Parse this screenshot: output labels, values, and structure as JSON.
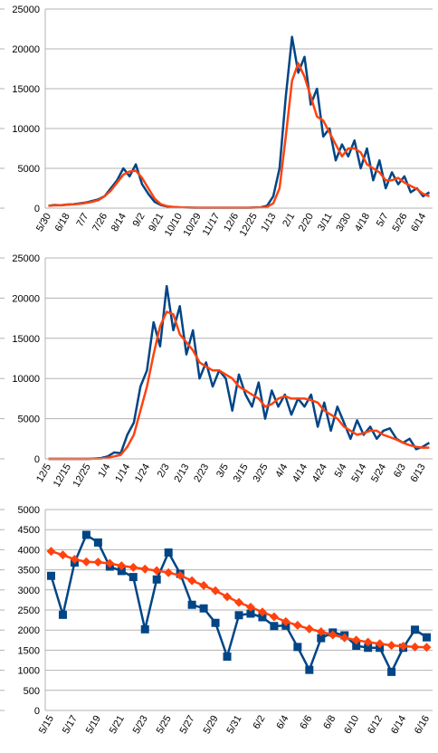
{
  "chart_data": [
    {
      "type": "line",
      "categories": [
        "5/30",
        null,
        null,
        "6/18",
        null,
        null,
        "7/7",
        null,
        null,
        "7/26",
        null,
        null,
        "8/14",
        null,
        null,
        "9/2",
        null,
        null,
        "9/21",
        null,
        null,
        "10/10",
        null,
        null,
        "10/29",
        null,
        null,
        "11/17",
        null,
        null,
        "12/6",
        null,
        null,
        "12/25",
        null,
        null,
        "1/13",
        null,
        null,
        "2/1",
        null,
        null,
        "2/20",
        null,
        null,
        "3/11",
        null,
        null,
        "3/30",
        null,
        null,
        "4/18",
        null,
        null,
        "5/7",
        null,
        null,
        "5/26",
        null,
        null,
        "6/14",
        null
      ],
      "series": [
        {
          "color": "#004586",
          "values": [
            300,
            400,
            350,
            450,
            500,
            600,
            700,
            900,
            1100,
            1500,
            2500,
            3500,
            5000,
            4000,
            5500,
            3000,
            1800,
            800,
            400,
            200,
            150,
            100,
            80,
            60,
            50,
            50,
            50,
            50,
            50,
            50,
            50,
            50,
            50,
            80,
            100,
            300,
            1500,
            5000,
            14000,
            21500,
            17000,
            19000,
            13000,
            15000,
            9000,
            10000,
            6000,
            8000,
            6500,
            8500,
            5000,
            7500,
            3500,
            6000,
            2500,
            4500,
            3000,
            4000,
            2000,
            2500,
            1500,
            2000
          ]
        },
        {
          "color": "#ff420e",
          "values": [
            300,
            350,
            380,
            420,
            480,
            550,
            650,
            800,
            1000,
            1500,
            2200,
            3200,
            4200,
            4600,
            4700,
            3800,
            2500,
            1200,
            500,
            250,
            150,
            100,
            70,
            60,
            50,
            50,
            50,
            50,
            50,
            50,
            50,
            50,
            50,
            60,
            80,
            150,
            600,
            2500,
            9000,
            16000,
            18200,
            16500,
            14000,
            11500,
            11000,
            9500,
            8000,
            6500,
            7500,
            7500,
            7000,
            5500,
            5000,
            4500,
            3500,
            3500,
            3800,
            3200,
            2800,
            2400,
            1800,
            1500
          ]
        }
      ],
      "ylim": [
        0,
        25000
      ],
      "yticks": [
        0,
        5000,
        10000,
        15000,
        20000,
        25000
      ],
      "grid": true
    },
    {
      "type": "line",
      "categories": [
        "12/5",
        null,
        null,
        "12/15",
        null,
        null,
        "12/25",
        null,
        null,
        "1/4",
        null,
        null,
        "1/14",
        null,
        null,
        "1/24",
        null,
        null,
        "2/3",
        null,
        null,
        "2/13",
        null,
        null,
        "2/23",
        null,
        null,
        "3/5",
        null,
        null,
        "3/15",
        null,
        null,
        "3/25",
        null,
        null,
        "4/4",
        null,
        null,
        "4/14",
        null,
        null,
        "4/24",
        null,
        null,
        "5/4",
        null,
        null,
        "5/14",
        null,
        null,
        "5/24",
        null,
        null,
        "6/3",
        null,
        null,
        "6/13",
        null
      ],
      "series": [
        {
          "color": "#004586",
          "values": [
            0,
            0,
            0,
            0,
            0,
            0,
            0,
            50,
            100,
            300,
            800,
            700,
            3000,
            4500,
            9000,
            11000,
            17000,
            14000,
            21500,
            16000,
            19000,
            13000,
            16000,
            10000,
            12000,
            9000,
            11000,
            10000,
            6000,
            10500,
            8000,
            6500,
            9500,
            5000,
            8500,
            6500,
            8000,
            5500,
            7500,
            6500,
            8000,
            4000,
            7000,
            3500,
            6500,
            4500,
            2500,
            4800,
            3000,
            4000,
            2500,
            3500,
            3800,
            2500,
            2000,
            2500,
            1200,
            1500,
            2000
          ]
        },
        {
          "color": "#ff420e",
          "values": [
            0,
            0,
            0,
            0,
            0,
            0,
            0,
            20,
            50,
            150,
            300,
            500,
            1500,
            3000,
            6000,
            9000,
            13000,
            16500,
            18300,
            18000,
            15500,
            14500,
            13500,
            12000,
            11500,
            11000,
            11000,
            10500,
            10000,
            9000,
            8500,
            8000,
            7500,
            6500,
            6800,
            7500,
            7800,
            7500,
            7500,
            7500,
            7300,
            7000,
            6000,
            5500,
            5000,
            4000,
            3500,
            3000,
            3200,
            3500,
            3500,
            3000,
            2700,
            2400,
            2000,
            1700,
            1500,
            1400,
            1400
          ]
        }
      ],
      "ylim": [
        0,
        25000
      ],
      "yticks": [
        0,
        5000,
        10000,
        15000,
        20000,
        25000
      ],
      "grid": true
    },
    {
      "type": "line",
      "categories": [
        "5/15",
        null,
        "5/17",
        null,
        "5/19",
        null,
        "5/21",
        null,
        "5/23",
        null,
        "5/25",
        null,
        "5/27",
        null,
        "5/29",
        null,
        "5/31",
        null,
        "6/2",
        null,
        "6/4",
        null,
        "6/6",
        null,
        "6/8",
        null,
        "6/10",
        null,
        "6/12",
        null,
        "6/14",
        null,
        "6/16"
      ],
      "series": [
        {
          "color": "#004586",
          "marker": "square",
          "values": [
            3350,
            2380,
            3680,
            4370,
            4180,
            3580,
            3470,
            3320,
            2020,
            3260,
            3930,
            3400,
            2630,
            2540,
            2180,
            1340,
            2370,
            2410,
            2320,
            2100,
            2110,
            1580,
            1010,
            1800,
            1940,
            1870,
            1610,
            1560,
            1560,
            960,
            1560,
            2010,
            1820
          ]
        },
        {
          "color": "#ff420e",
          "marker": "diamond",
          "values": [
            3960,
            3870,
            3760,
            3700,
            3690,
            3660,
            3600,
            3560,
            3520,
            3480,
            3430,
            3360,
            3230,
            3110,
            2980,
            2830,
            2690,
            2570,
            2450,
            2330,
            2210,
            2120,
            2030,
            1960,
            1880,
            1810,
            1750,
            1700,
            1660,
            1620,
            1600,
            1580,
            1570
          ]
        }
      ],
      "ylim": [
        0,
        5000
      ],
      "yticks": [
        0,
        500,
        1000,
        1500,
        2000,
        2500,
        3000,
        3500,
        4000,
        4500,
        5000
      ],
      "grid": true
    }
  ]
}
